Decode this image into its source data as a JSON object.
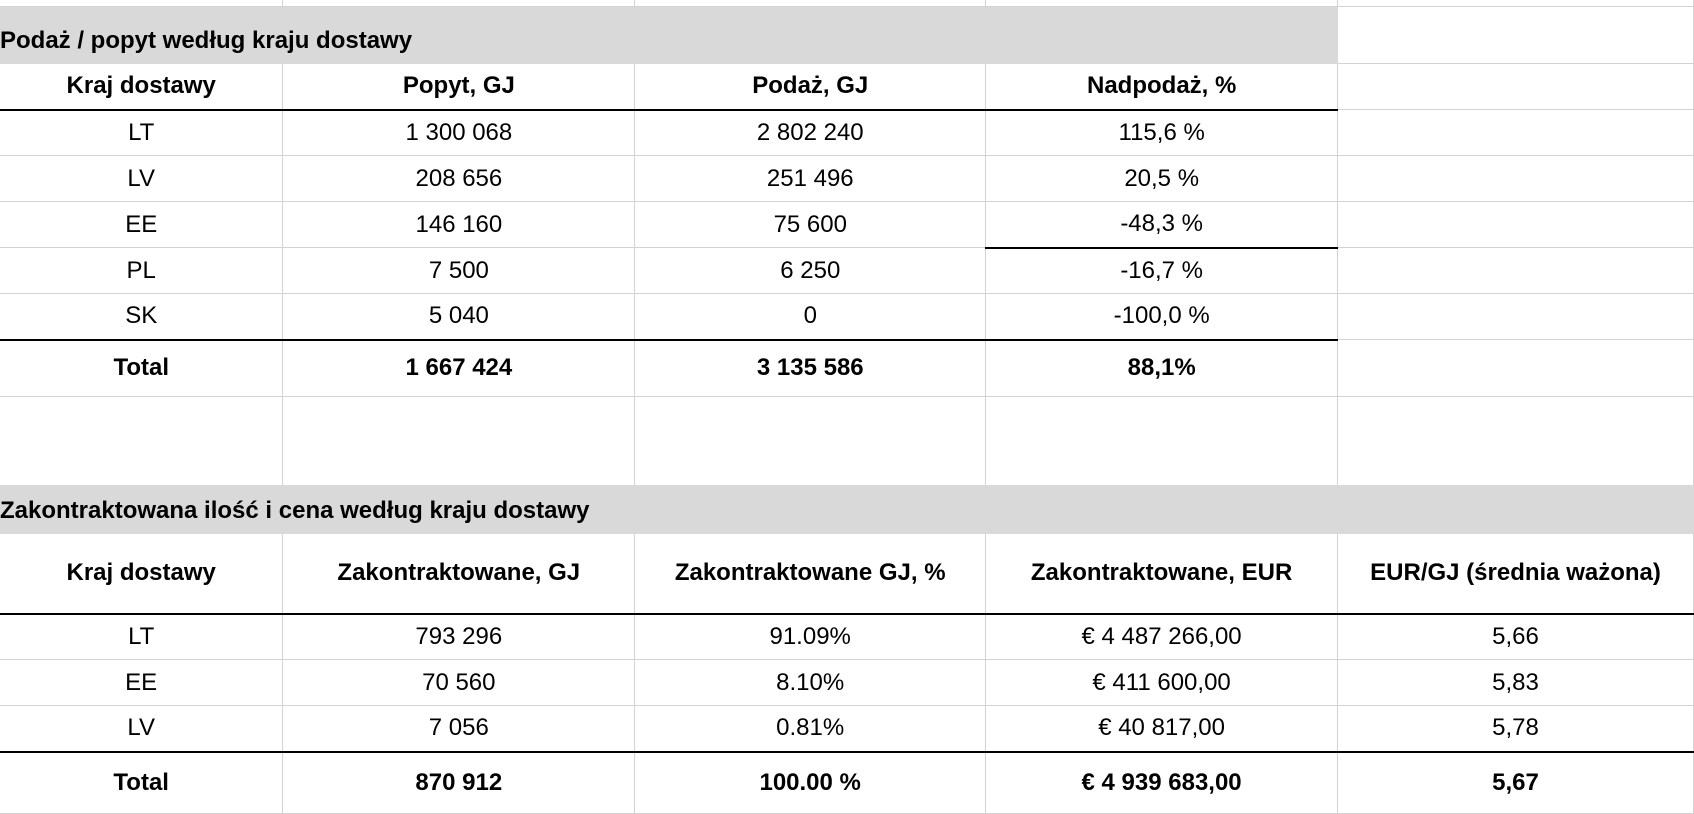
{
  "supply_demand": {
    "title": "Podaż / popyt według kraju dostawy",
    "headers": [
      "Kraj dostawy",
      "Popyt, GJ",
      "Podaż, GJ",
      "Nadpodaż, %"
    ],
    "rows": [
      [
        "LT",
        "1 300 068",
        "2 802 240",
        "115,6 %"
      ],
      [
        "LV",
        "208 656",
        "251 496",
        "20,5 %"
      ],
      [
        "EE",
        "146 160",
        "75 600",
        "-48,3 %"
      ],
      [
        "PL",
        "7 500",
        "6 250",
        "-16,7 %"
      ],
      [
        "SK",
        "5 040",
        "0",
        "-100,0 %"
      ]
    ],
    "total": [
      "Total",
      "1 667 424",
      "3 135 586",
      "88,1%"
    ]
  },
  "contracted": {
    "title": "Zakontraktowana ilość i cena według kraju dostawy",
    "headers": [
      "Kraj dostawy",
      "Zakontraktowane, GJ",
      "Zakontraktowane GJ, %",
      "Zakontraktowane, EUR",
      "EUR/GJ (średnia ważona)"
    ],
    "rows": [
      [
        "LT",
        "793 296",
        "91.09%",
        "€ 4 487 266,00",
        "5,66"
      ],
      [
        "EE",
        "70 560",
        "8.10%",
        "€ 411 600,00",
        "5,83"
      ],
      [
        "LV",
        "7 056",
        "0.81%",
        "€ 40 817,00",
        "5,78"
      ]
    ],
    "total": [
      "Total",
      "870 912",
      "100.00 %",
      "€ 4 939 683,00",
      "5,67"
    ]
  },
  "colors": {
    "band": "#d9d9d9",
    "grid": "#d3d3d3",
    "rule": "#000000"
  }
}
